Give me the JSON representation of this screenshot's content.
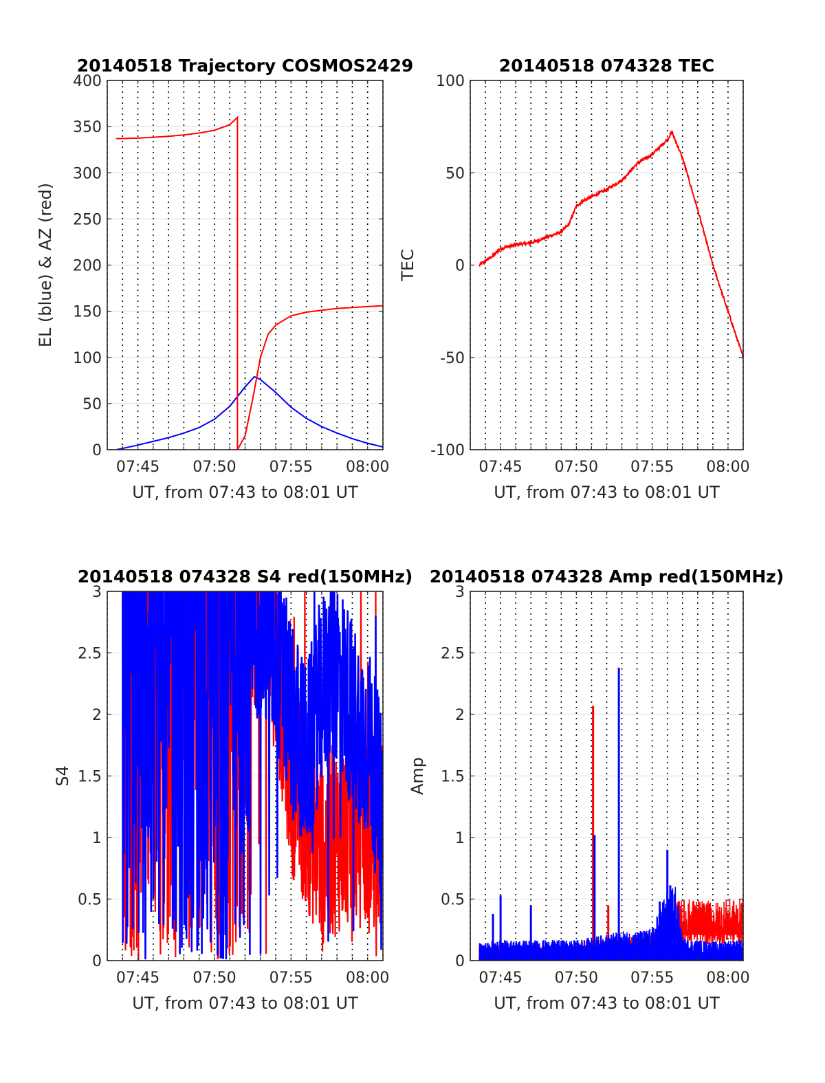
{
  "chart_data": [
    {
      "type": "line",
      "title": "20140518 Trajectory COSMOS2429",
      "xlabel": "UT, from 07:43 to 08:01 UT",
      "ylabel": "EL (blue) & AZ (red)",
      "xlim": [
        "07:43",
        "08:01"
      ],
      "ylim": [
        0,
        400
      ],
      "xticks": [
        "07:45",
        "07:50",
        "07:55",
        "08:00"
      ],
      "yticks": [
        "0",
        "50",
        "100",
        "150",
        "200",
        "250",
        "300",
        "350",
        "400"
      ],
      "grid": "dotted vertical every minute, horizontal at y ticks",
      "series": [
        {
          "name": "EL",
          "color": "#0000ff",
          "x": [
            "07:43.6",
            "07:45",
            "07:46",
            "07:47",
            "07:48",
            "07:49",
            "07:50",
            "07:51",
            "07:52",
            "07:52.6",
            "07:53",
            "07:54",
            "07:55",
            "07:56",
            "07:57",
            "07:58",
            "07:59",
            "08:00",
            "08:01"
          ],
          "y": [
            0,
            5,
            9,
            13,
            18,
            24,
            33,
            47,
            68,
            79,
            76,
            62,
            46,
            34,
            25,
            18,
            12,
            7,
            3
          ]
        },
        {
          "name": "AZ",
          "color": "#ff0000",
          "x": [
            "07:43.6",
            "07:45",
            "07:46",
            "07:47",
            "07:48",
            "07:49",
            "07:50",
            "07:51",
            "07:51.5",
            "07:51.5",
            "07:52",
            "07:52.5",
            "07:53",
            "07:53.5",
            "07:54",
            "07:55",
            "07:56",
            "07:57",
            "07:58",
            "07:59",
            "08:00",
            "08:01"
          ],
          "y": [
            337,
            337.5,
            338.5,
            339.5,
            341,
            343,
            346,
            352,
            360,
            0,
            15,
            55,
            100,
            125,
            135,
            145,
            149,
            151,
            153,
            154,
            155,
            156
          ]
        }
      ]
    },
    {
      "type": "line",
      "title": "20140518 074328 TEC",
      "xlabel": "UT, from 07:43 to 08:01 UT",
      "ylabel": "TEC",
      "xlim": [
        "07:43",
        "08:01"
      ],
      "ylim": [
        -100,
        100
      ],
      "xticks": [
        "07:45",
        "07:50",
        "07:55",
        "08:00"
      ],
      "yticks": [
        "-100",
        "-50",
        "0",
        "50",
        "100"
      ],
      "series": [
        {
          "name": "TEC",
          "color": "#ff0000",
          "x": [
            "07:43.6",
            "07:44.5",
            "07:45",
            "07:46",
            "07:47",
            "07:48",
            "07:49",
            "07:49.5",
            "07:50",
            "07:50.5",
            "07:51",
            "07:52",
            "07:53",
            "07:54",
            "07:55",
            "07:55.5",
            "07:56",
            "07:56.3",
            "07:57",
            "07:58",
            "07:59",
            "08:00",
            "08:01"
          ],
          "y": [
            0,
            5,
            9,
            11,
            12,
            15,
            18,
            22,
            32,
            35,
            37,
            41,
            46,
            55,
            60,
            64,
            68,
            72,
            58,
            30,
            0,
            -25,
            -50
          ]
        }
      ]
    },
    {
      "type": "line",
      "title": "20140518 074328 S4 red(150MHz)",
      "xlabel": "UT, from 07:43 to 08:01 UT",
      "ylabel": "S4",
      "xlim": [
        "07:43",
        "08:01"
      ],
      "ylim": [
        0,
        3
      ],
      "xticks": [
        "07:45",
        "07:50",
        "07:55",
        "08:00"
      ],
      "yticks": [
        "0",
        "0.5",
        "1",
        "1.5",
        "2",
        "2.5",
        "3"
      ],
      "series": [
        {
          "name": "S4 (150MHz)",
          "color": "#ff0000",
          "x": [
            "07:44",
            "07:46",
            "07:48",
            "07:50",
            "07:52",
            "07:54",
            "07:55",
            "07:56",
            "07:57",
            "07:58",
            "07:59",
            "08:00",
            "08:01"
          ],
          "y": [
            3,
            3,
            3,
            3,
            3,
            2.5,
            1.5,
            1.2,
            0.9,
            1.0,
            1.1,
            1.0,
            1.0
          ]
        },
        {
          "color": "#0000ff",
          "x": [
            "07:44",
            "07:46",
            "07:48",
            "07:50",
            "07:52",
            "07:53",
            "07:54",
            "07:55",
            "07:56",
            "07:57",
            "07:58",
            "07:59",
            "08:00",
            "08:01"
          ],
          "y": [
            3,
            3,
            3,
            3,
            3,
            2.7,
            2.5,
            2.0,
            1.6,
            2.2,
            2.4,
            2.0,
            1.8,
            1.2
          ]
        }
      ]
    },
    {
      "type": "line",
      "title": "20140518 074328 Amp red(150MHz)",
      "xlabel": "UT, from 07:43 to 08:01 UT",
      "ylabel": "Amp",
      "xlim": [
        "07:43",
        "08:01"
      ],
      "ylim": [
        0,
        3
      ],
      "xticks": [
        "07:45",
        "07:50",
        "07:55",
        "08:00"
      ],
      "yticks": [
        "0",
        "0.5",
        "1",
        "1.5",
        "2",
        "2.5",
        "3"
      ],
      "series": [
        {
          "name": "Amp (150MHz)",
          "color": "#ff0000",
          "x": [
            "07:43.6",
            "07:46",
            "07:48",
            "07:50",
            "07:51",
            "07:53",
            "07:55",
            "07:56.5",
            "07:57",
            "07:58",
            "07:59",
            "08:00",
            "08:01"
          ],
          "y": [
            0.1,
            0.1,
            0.1,
            0.12,
            0.15,
            0.15,
            0.18,
            0.4,
            0.42,
            0.42,
            0.4,
            0.42,
            0.42
          ],
          "spikes": [
            {
              "x": "07:51.1",
              "y": 2.07
            },
            {
              "x": "07:52.1",
              "y": 0.45
            }
          ]
        },
        {
          "color": "#0000ff",
          "x": [
            "07:43.6",
            "07:45",
            "07:46",
            "07:48",
            "07:50",
            "07:51",
            "07:52",
            "07:53",
            "07:54",
            "07:55",
            "07:56",
            "07:56.5",
            "07:57",
            "07:58",
            "07:59",
            "08:00",
            "08:01"
          ],
          "y": [
            0.12,
            0.14,
            0.14,
            0.14,
            0.14,
            0.16,
            0.18,
            0.2,
            0.2,
            0.22,
            0.5,
            0.55,
            0.15,
            0.14,
            0.13,
            0.14,
            0.14
          ],
          "spikes": [
            {
              "x": "07:44.5",
              "y": 0.38
            },
            {
              "x": "07:45",
              "y": 0.53
            },
            {
              "x": "07:47",
              "y": 0.45
            },
            {
              "x": "07:51.2",
              "y": 1.02
            },
            {
              "x": "07:52.8",
              "y": 2.38
            },
            {
              "x": "07:55.5",
              "y": 0.48
            },
            {
              "x": "07:56",
              "y": 0.9
            }
          ]
        }
      ]
    }
  ]
}
